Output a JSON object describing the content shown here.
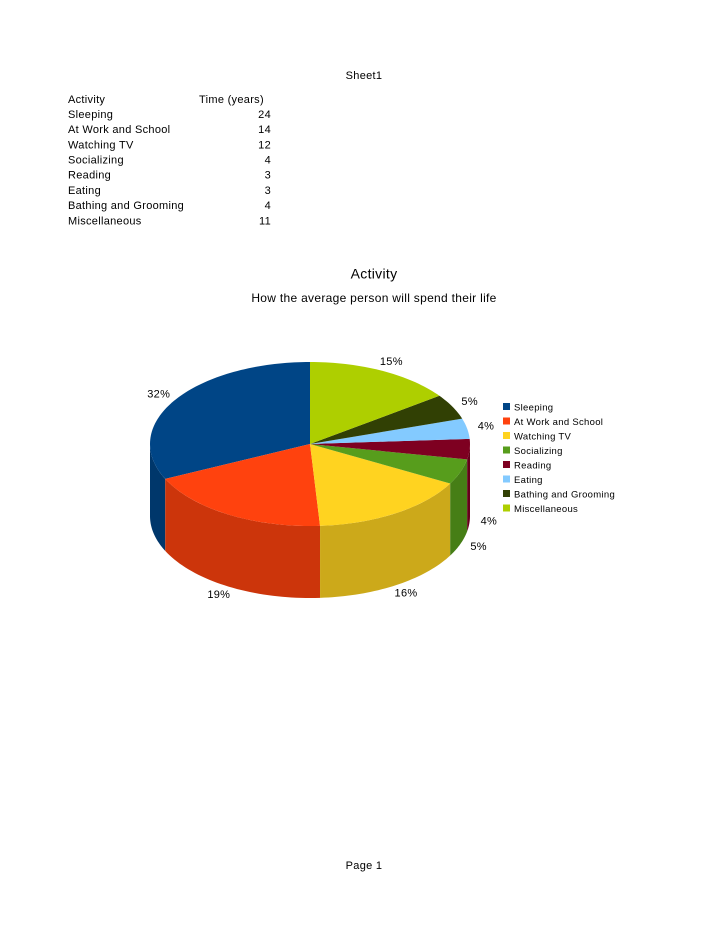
{
  "header": "Sheet1",
  "table": {
    "columns": [
      "Activity",
      "Time (years)"
    ],
    "rows": [
      [
        "Sleeping",
        "24"
      ],
      [
        "At Work and School",
        "14"
      ],
      [
        "Watching TV",
        "12"
      ],
      [
        "Socializing",
        "4"
      ],
      [
        "Reading",
        "3"
      ],
      [
        "Eating",
        "3"
      ],
      [
        "Bathing and Grooming",
        "4"
      ],
      [
        "Miscellaneous",
        "11"
      ]
    ]
  },
  "chart_data": {
    "type": "pie",
    "title": "Activity",
    "subtitle": "How the average person will spend their life",
    "categories": [
      "Sleeping",
      "At Work and School",
      "Watching TV",
      "Socializing",
      "Reading",
      "Eating",
      "Bathing and Grooming",
      "Miscellaneous"
    ],
    "values": [
      32,
      19,
      16,
      5,
      4,
      4,
      5,
      15
    ],
    "value_labels": [
      "32%",
      "19%",
      "16%",
      "5%",
      "4%",
      "4%",
      "5%",
      "15%"
    ],
    "colors": [
      "#004586",
      "#ff420e",
      "#ffd320",
      "#579d1c",
      "#7e0021",
      "#83caff",
      "#314004",
      "#aecf00"
    ],
    "legend": "right"
  },
  "footer": "Page 1"
}
